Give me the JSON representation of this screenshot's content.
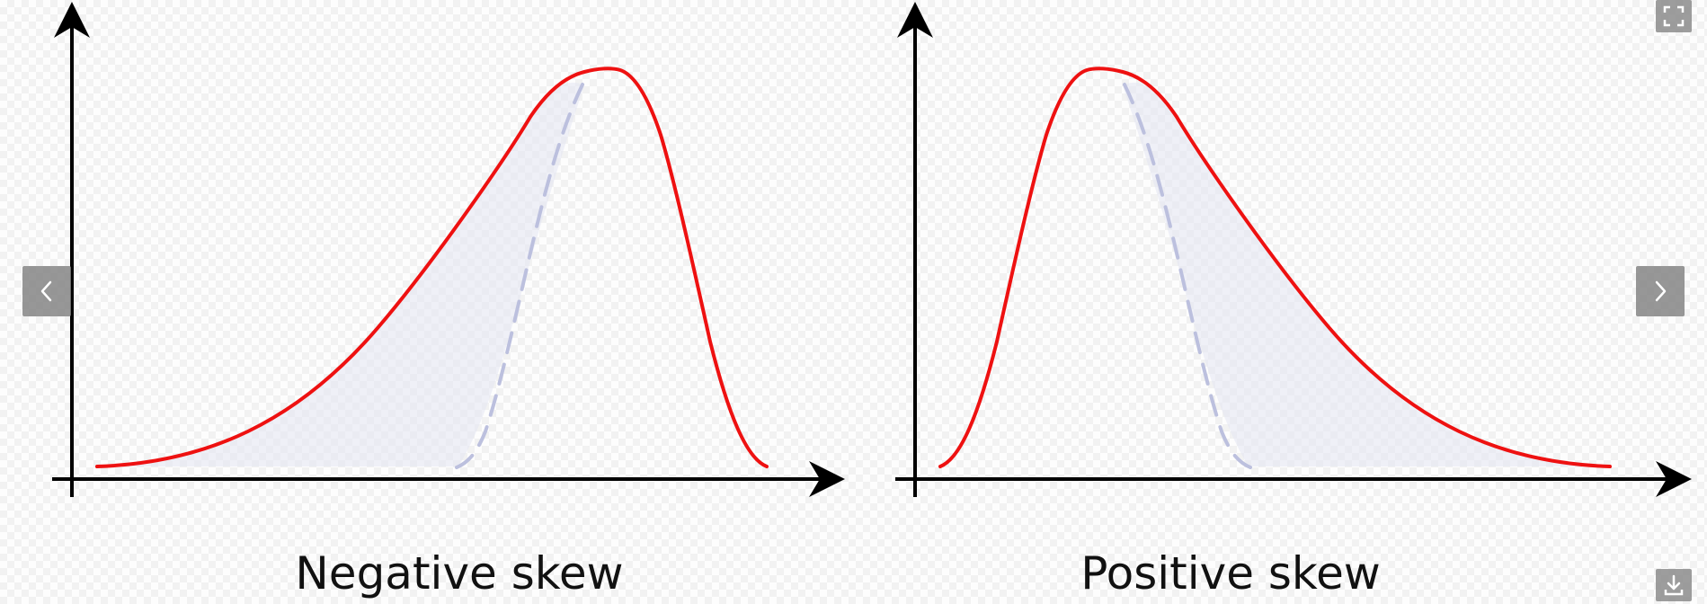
{
  "panels": [
    {
      "caption": "Negative skew",
      "skew": "negative"
    },
    {
      "caption": "Positive skew",
      "skew": "positive"
    }
  ],
  "colors": {
    "curve": "#ee1111",
    "reference": "#b9bddd",
    "shade": "#e2e4f2",
    "axis": "#000000"
  },
  "controls": {
    "prev_icon": "chevron-left-icon",
    "next_icon": "chevron-right-icon",
    "fullscreen_icon": "fullscreen-icon",
    "download_icon": "download-icon"
  }
}
